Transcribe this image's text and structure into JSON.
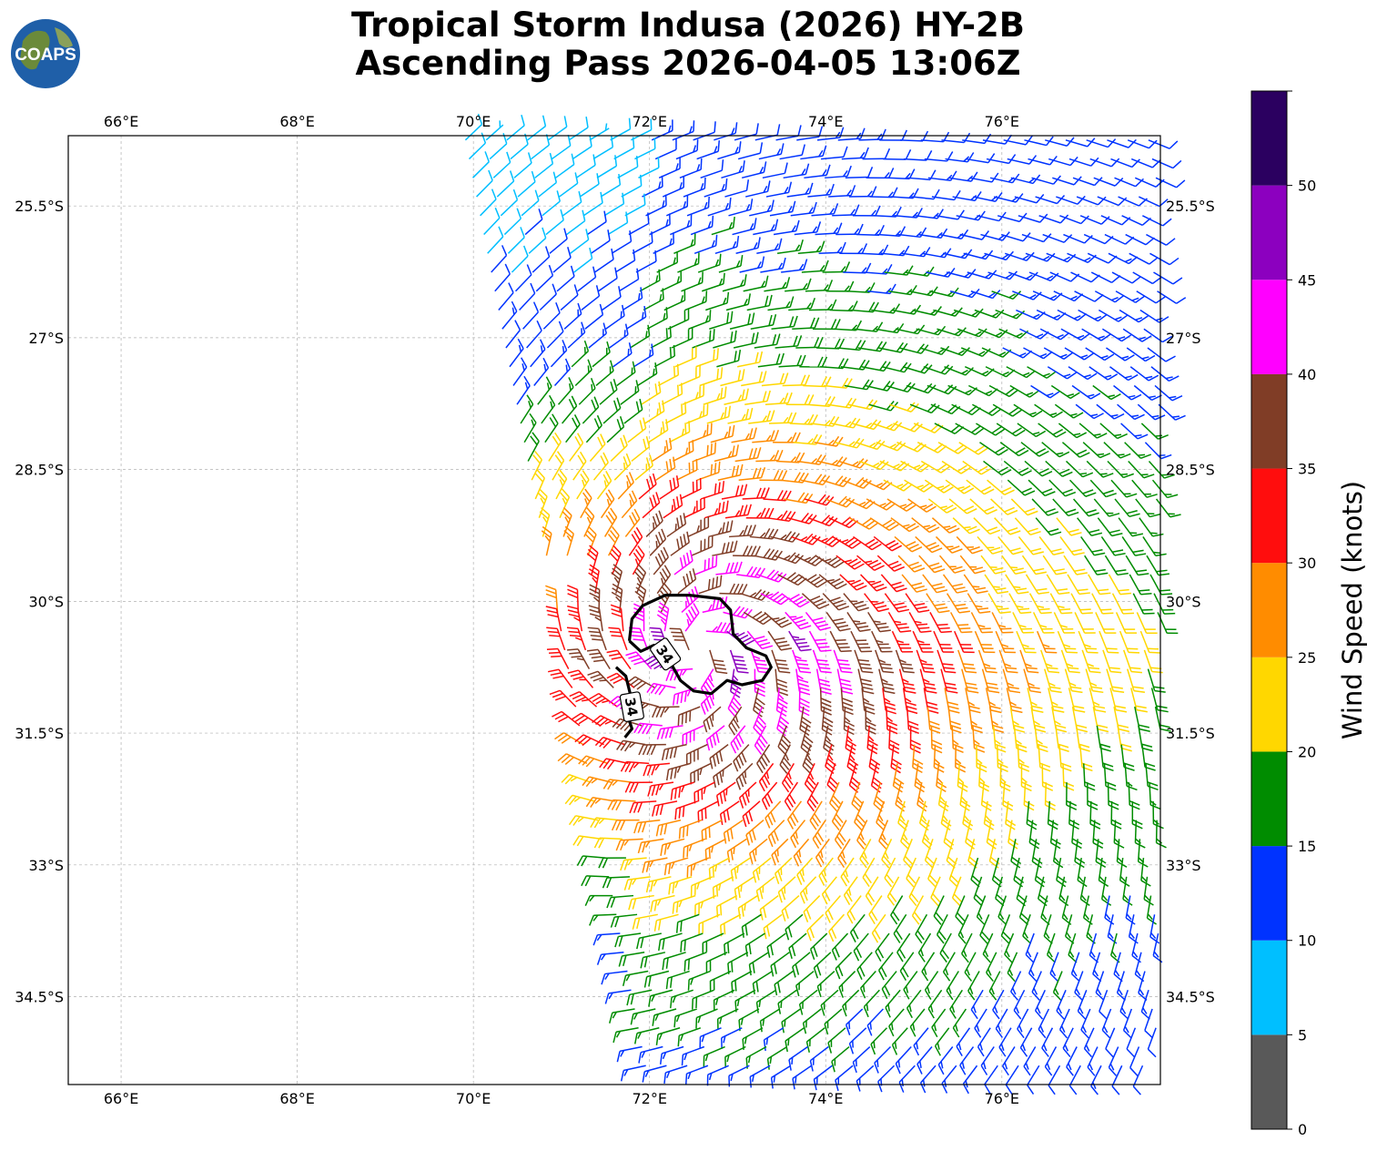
{
  "logo": {
    "text": "COAPS"
  },
  "title": {
    "line1": "Tropical Storm Indusa (2026) HY-2B",
    "line2": "Ascending Pass 2026-04-05 13:06Z"
  },
  "map": {
    "lon_range": [
      65.4,
      77.8
    ],
    "lat_range": [
      -35.5,
      -24.7
    ],
    "x_ticks": [
      {
        "value": 66,
        "label": "66°E"
      },
      {
        "value": 68,
        "label": "68°E"
      },
      {
        "value": 70,
        "label": "70°E"
      },
      {
        "value": 72,
        "label": "72°E"
      },
      {
        "value": 74,
        "label": "74°E"
      },
      {
        "value": 76,
        "label": "76°E"
      }
    ],
    "y_ticks": [
      {
        "value": -25.5,
        "label": "25.5°S"
      },
      {
        "value": -27,
        "label": "27°S"
      },
      {
        "value": -28.5,
        "label": "28.5°S"
      },
      {
        "value": -30,
        "label": "30°S"
      },
      {
        "value": -31.5,
        "label": "31.5°S"
      },
      {
        "value": -33,
        "label": "33°S"
      },
      {
        "value": -34.5,
        "label": "34.5°S"
      }
    ],
    "storm_center": {
      "lon": 72.55,
      "lat": -30.55
    },
    "contour": {
      "level_label": "34",
      "labels": [
        {
          "lon": 72.18,
          "lat": -30.6,
          "angle": 55
        },
        {
          "lon": 71.8,
          "lat": -31.2,
          "angle": 80
        }
      ],
      "path_main": [
        [
          71.77,
          -30.45
        ],
        [
          71.8,
          -30.2
        ],
        [
          71.92,
          -30.05
        ],
        [
          72.18,
          -29.93
        ],
        [
          72.45,
          -29.93
        ],
        [
          72.8,
          -29.97
        ],
        [
          72.92,
          -30.1
        ],
        [
          72.95,
          -30.37
        ],
        [
          73.1,
          -30.53
        ],
        [
          73.32,
          -30.62
        ],
        [
          73.38,
          -30.75
        ],
        [
          73.28,
          -30.9
        ],
        [
          73.05,
          -30.95
        ],
        [
          72.88,
          -30.9
        ],
        [
          72.7,
          -31.05
        ],
        [
          72.5,
          -31.02
        ],
        [
          72.35,
          -30.9
        ],
        [
          72.25,
          -30.72
        ],
        [
          72.22,
          -30.62
        ],
        [
          72.05,
          -30.5
        ],
        [
          71.9,
          -30.57
        ],
        [
          71.77,
          -30.45
        ]
      ],
      "path_branch": [
        [
          71.62,
          -30.75
        ],
        [
          71.73,
          -30.85
        ],
        [
          71.78,
          -31.05
        ],
        [
          71.75,
          -31.3
        ],
        [
          71.8,
          -31.45
        ],
        [
          71.72,
          -31.55
        ]
      ]
    },
    "swath": {
      "west_lon_north": 69.9,
      "east_lon": 77.8,
      "west_lon_south": 72.0,
      "lat_north": -24.7,
      "lat_south": -35.5,
      "notch": {
        "lon": 71.3,
        "lat_from": -29.6,
        "lat_to": -30.1
      }
    }
  },
  "colorbar": {
    "label": "Wind Speed (knots)",
    "bins": [
      {
        "from": 0,
        "to": 5,
        "color": "#595959"
      },
      {
        "from": 5,
        "to": 10,
        "color": "#00bfff"
      },
      {
        "from": 10,
        "to": 15,
        "color": "#0033ff"
      },
      {
        "from": 15,
        "to": 20,
        "color": "#008c00"
      },
      {
        "from": 20,
        "to": 25,
        "color": "#ffd700"
      },
      {
        "from": 25,
        "to": 30,
        "color": "#ff8c00"
      },
      {
        "from": 30,
        "to": 35,
        "color": "#ff0d0d"
      },
      {
        "from": 35,
        "to": 40,
        "color": "#803d26"
      },
      {
        "from": 40,
        "to": 45,
        "color": "#ff00ff"
      },
      {
        "from": 45,
        "to": 50,
        "color": "#8c00bf"
      },
      {
        "from": 50,
        "to": 55,
        "color": "#2b0060"
      }
    ],
    "ticks": [
      "0",
      "5",
      "10",
      "15",
      "20",
      "25",
      "30",
      "35",
      "40",
      "45",
      "50"
    ]
  }
}
